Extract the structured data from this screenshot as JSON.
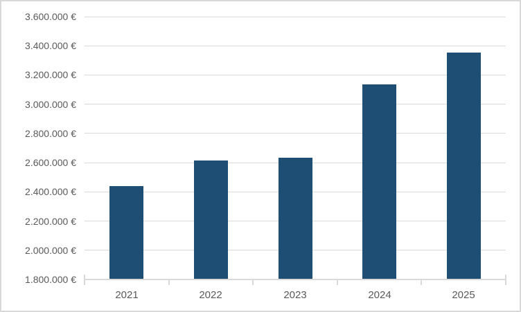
{
  "chart_data": {
    "type": "bar",
    "title": "",
    "xlabel": "",
    "ylabel": "",
    "categories": [
      "2021",
      "2022",
      "2023",
      "2024",
      "2025"
    ],
    "values": [
      2435000,
      2610000,
      2630000,
      3130000,
      3350000
    ],
    "value_unit": "EUR",
    "ylim": [
      1800000,
      3600000
    ],
    "ytick_step": 200000,
    "ytick_labels": [
      "1.800.000 €",
      "2.000.000 €",
      "2.200.000 €",
      "2.400.000 €",
      "2.600.000 €",
      "2.800.000 €",
      "3.000.000 €",
      "3.200.000 €",
      "3.400.000 €",
      "3.600.000 €"
    ],
    "grid": true,
    "legend_position": "none",
    "colors": {
      "bar": "#1F4E74",
      "gridline": "#D9D9D9",
      "axis_line": "#D9D9D9",
      "tick": "#D9D9D9",
      "label_text": "#595959",
      "background": "#FFFFFF",
      "border": "#D9D9D9"
    }
  }
}
